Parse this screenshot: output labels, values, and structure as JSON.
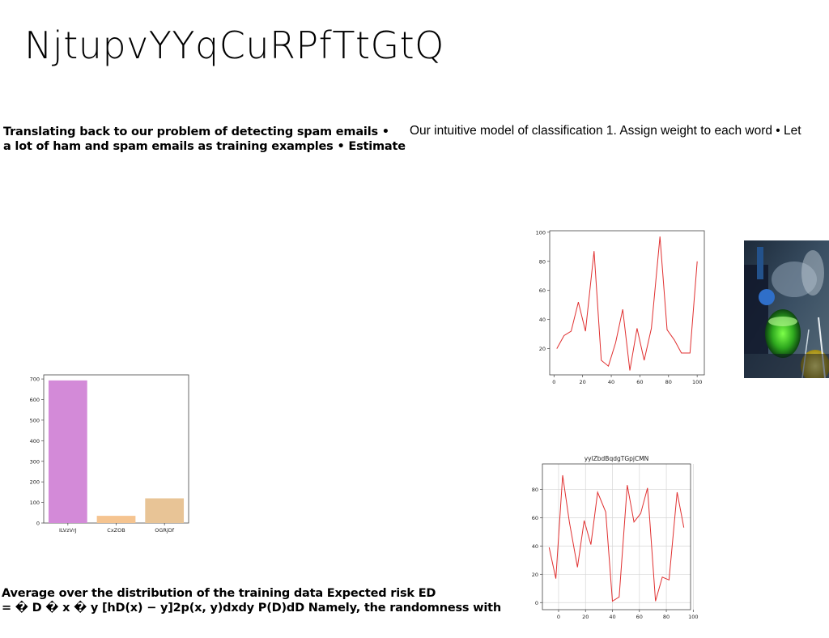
{
  "slide": {
    "title": "NjtupvYYqCuRPfTtGtQ",
    "paragraph1": [
      "Translating back to our problem of detecting spam emails •",
      "a lot of ham and spam emails as training examples • Estimate"
    ],
    "paragraph2": "Our intuitive model of classification 1. Assign weight to each word • Let",
    "paragraph3": [
      "Average over the distribution of the training data Expected risk ED",
      "= � D � x � y [hD(x) − y]2p(x, y)dxdy P(D)dD Namely, the randomness with"
    ]
  },
  "chart_data": [
    {
      "id": "bar-chart",
      "type": "bar",
      "title": "",
      "categories": [
        "ILVzVrJ",
        "CxZOB",
        "OGRjDf"
      ],
      "values": [
        693,
        35,
        120
      ],
      "colors": [
        "#d38ad8",
        "#f5c490",
        "#e8c496"
      ],
      "ylim": [
        0,
        720
      ],
      "yticks": [
        0,
        100,
        200,
        300,
        400,
        500,
        600,
        700
      ],
      "grid": false
    },
    {
      "id": "line-chart-top",
      "type": "line",
      "title": "",
      "x": [
        2,
        7,
        12,
        17,
        22,
        28,
        33,
        38,
        43,
        48,
        53,
        58,
        63,
        68,
        74,
        79,
        84,
        89,
        95,
        100
      ],
      "y": [
        20,
        29,
        32,
        52,
        32,
        87,
        12,
        8,
        24,
        47,
        5,
        34,
        12,
        34,
        97,
        33,
        26,
        17,
        17,
        80
      ],
      "color": "#e03030",
      "xlim": [
        -3,
        105
      ],
      "ylim": [
        2,
        101
      ],
      "xticks": [
        0,
        20,
        40,
        60,
        80,
        100
      ],
      "yticks": [
        20,
        40,
        60,
        80,
        100
      ],
      "grid": false
    },
    {
      "id": "line-chart-bottom",
      "type": "line",
      "title": "yylZbdBqdgTGpjCMN",
      "x": [
        -7,
        -2,
        3,
        8,
        14,
        19,
        24,
        29,
        35,
        40,
        45,
        51,
        56,
        61,
        66,
        72,
        77,
        82,
        88,
        93
      ],
      "y": [
        39,
        17,
        90,
        57,
        25,
        58,
        41,
        78,
        64,
        1,
        4,
        83,
        57,
        63,
        81,
        1,
        18,
        16,
        78,
        53
      ],
      "color": "#e03030",
      "xlim": [
        -12,
        98
      ],
      "ylim": [
        -5,
        98
      ],
      "xticks": [
        0,
        20,
        40,
        60,
        80,
        100
      ],
      "yticks": [
        0,
        20,
        40,
        60,
        80
      ],
      "grid": true
    }
  ],
  "image": {
    "icon": "lab-glassware-photo"
  }
}
